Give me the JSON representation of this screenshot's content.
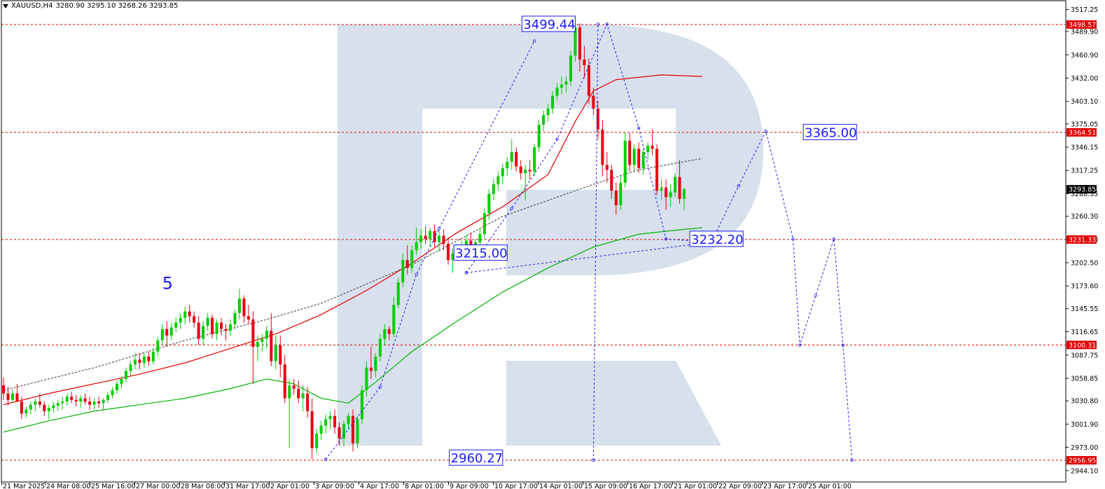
{
  "header": {
    "symbol": "XAUUSD,H4",
    "ohlc": "3280.90 3295.10 3268.26 3293.85"
  },
  "colors": {
    "bull": "#00cc00",
    "bear": "#e60012",
    "ma_red": "#e00000",
    "ma_green": "#00b400",
    "ma_dashed": "#555555",
    "level": "#e00000",
    "forecast": "#1a1aff",
    "watermark": "#d7e0ec"
  },
  "chart_data": {
    "type": "candlestick",
    "title": "XAUUSD,H4",
    "ylim": [
      2945,
      3530
    ],
    "yticks": [
      3517.25,
      3489.9,
      3460.9,
      3432.0,
      3403.1,
      3375.05,
      3346.15,
      3317.25,
      3288.35,
      3260.3,
      3231.4,
      3202.5,
      3173.6,
      3145.55,
      3116.65,
      3087.75,
      3058.85,
      3030.8,
      3001.9,
      2973.0,
      2944.1
    ],
    "xticks": [
      "21 Mar 2025",
      "24 Mar 08:00",
      "25 Mar 16:00",
      "27 Mar 00:00",
      "28 Mar 08:00",
      "31 Mar 17:00",
      "2 Apr 01:00",
      "3 Apr 09:00",
      "4 Apr 17:00",
      "8 Apr 01:00",
      "9 Apr 09:00",
      "10 Apr 17:00",
      "14 Apr 01:00",
      "15 Apr 09:00",
      "16 Apr 17:00",
      "21 Apr 01:00",
      "22 Apr 09:00",
      "23 Apr 17:00",
      "25 Apr 01:00"
    ],
    "price_tags": [
      {
        "value": 3498.57,
        "text": "3498.57",
        "color": "#e00000"
      },
      {
        "value": 3364.51,
        "text": "3364.51",
        "color": "#e00000"
      },
      {
        "value": 3293.85,
        "text": "3293.85",
        "color": "#000000"
      },
      {
        "value": 3231.33,
        "text": "3231.33",
        "color": "#e00000"
      },
      {
        "value": 3100.31,
        "text": "3100.31",
        "color": "#e00000"
      },
      {
        "value": 2956.95,
        "text": "2956.95",
        "color": "#e00000"
      }
    ],
    "levels": [
      3498.57,
      3364.51,
      3231.33,
      3100.31,
      2956.95
    ],
    "annotations": [
      {
        "text": "3499.44",
        "x": 126,
        "y": 3499.44
      },
      {
        "text": "3365.00",
        "x": 188,
        "y": 3365.0
      },
      {
        "text": "3215.00",
        "x": 111,
        "y": 3215.0
      },
      {
        "text": "3232.20",
        "x": 163,
        "y": 3232.2
      },
      {
        "text": "2960.27",
        "x": 110,
        "y": 2960.27
      }
    ],
    "wave_label": {
      "text": "5",
      "x": 35,
      "y": 3170
    },
    "candles": [
      [
        3050,
        3060,
        3032,
        3040
      ],
      [
        3040,
        3048,
        3025,
        3032
      ],
      [
        3032,
        3045,
        3028,
        3040
      ],
      [
        3040,
        3052,
        3035,
        3030
      ],
      [
        3030,
        3036,
        3008,
        3015
      ],
      [
        3015,
        3024,
        3010,
        3020
      ],
      [
        3020,
        3030,
        3014,
        3026
      ],
      [
        3026,
        3034,
        3018,
        3030
      ],
      [
        3030,
        3040,
        3022,
        3026
      ],
      [
        3026,
        3030,
        3012,
        3018
      ],
      [
        3018,
        3026,
        3008,
        3022
      ],
      [
        3022,
        3030,
        3016,
        3025
      ],
      [
        3025,
        3032,
        3018,
        3028
      ],
      [
        3028,
        3036,
        3020,
        3030
      ],
      [
        3030,
        3040,
        3025,
        3036
      ],
      [
        3036,
        3042,
        3028,
        3032
      ],
      [
        3032,
        3038,
        3024,
        3030
      ],
      [
        3030,
        3038,
        3022,
        3034
      ],
      [
        3034,
        3040,
        3026,
        3030
      ],
      [
        3030,
        3036,
        3020,
        3026
      ],
      [
        3026,
        3034,
        3020,
        3030
      ],
      [
        3030,
        3036,
        3022,
        3028
      ],
      [
        3028,
        3034,
        3020,
        3032
      ],
      [
        3032,
        3042,
        3028,
        3038
      ],
      [
        3038,
        3048,
        3034,
        3044
      ],
      [
        3044,
        3056,
        3040,
        3052
      ],
      [
        3052,
        3062,
        3046,
        3058
      ],
      [
        3058,
        3072,
        3054,
        3068
      ],
      [
        3068,
        3080,
        3062,
        3076
      ],
      [
        3076,
        3090,
        3070,
        3082
      ],
      [
        3082,
        3090,
        3070,
        3078
      ],
      [
        3078,
        3090,
        3072,
        3086
      ],
      [
        3086,
        3092,
        3074,
        3080
      ],
      [
        3080,
        3096,
        3076,
        3092
      ],
      [
        3092,
        3110,
        3086,
        3106
      ],
      [
        3106,
        3126,
        3100,
        3120
      ],
      [
        3120,
        3130,
        3098,
        3112
      ],
      [
        3112,
        3128,
        3106,
        3122
      ],
      [
        3122,
        3134,
        3116,
        3128
      ],
      [
        3128,
        3140,
        3120,
        3134
      ],
      [
        3134,
        3148,
        3126,
        3142
      ],
      [
        3142,
        3150,
        3128,
        3136
      ],
      [
        3136,
        3142,
        3122,
        3128
      ],
      [
        3128,
        3136,
        3100,
        3108
      ],
      [
        3108,
        3130,
        3100,
        3124
      ],
      [
        3124,
        3140,
        3118,
        3134
      ],
      [
        3134,
        3138,
        3108,
        3114
      ],
      [
        3114,
        3132,
        3106,
        3128
      ],
      [
        3128,
        3134,
        3112,
        3120
      ],
      [
        3120,
        3126,
        3106,
        3118
      ],
      [
        3118,
        3132,
        3112,
        3126
      ],
      [
        3126,
        3144,
        3120,
        3140
      ],
      [
        3140,
        3170,
        3132,
        3158
      ],
      [
        3158,
        3162,
        3128,
        3136
      ],
      [
        3136,
        3150,
        3126,
        3132
      ],
      [
        3132,
        3142,
        3052,
        3098
      ],
      [
        3098,
        3112,
        3080,
        3104
      ],
      [
        3104,
        3114,
        3092,
        3108
      ],
      [
        3108,
        3124,
        3096,
        3118
      ],
      [
        3118,
        3140,
        3074,
        3080
      ],
      [
        3080,
        3112,
        3070,
        3100
      ],
      [
        3100,
        3112,
        3060,
        3076
      ],
      [
        3076,
        3088,
        3028,
        3034
      ],
      [
        3034,
        3058,
        2972,
        3050
      ],
      [
        3050,
        3058,
        3038,
        3046
      ],
      [
        3046,
        3056,
        3028,
        3034
      ],
      [
        3034,
        3050,
        3018,
        3040
      ],
      [
        3040,
        3048,
        3010,
        3018
      ],
      [
        3018,
        3034,
        2958,
        2972
      ],
      [
        2972,
        2996,
        2966,
        2990
      ],
      [
        2990,
        3006,
        2982,
        3000
      ],
      [
        3000,
        3014,
        2990,
        3008
      ],
      [
        3008,
        3018,
        2996,
        3012
      ],
      [
        3012,
        3020,
        2990,
        2998
      ],
      [
        2998,
        3004,
        2975,
        2984
      ],
      [
        2984,
        3006,
        2974,
        3002
      ],
      [
        3002,
        3016,
        2996,
        3012
      ],
      [
        3012,
        3020,
        2968,
        2978
      ],
      [
        2978,
        3012,
        2972,
        3008
      ],
      [
        3008,
        3050,
        3002,
        3044
      ],
      [
        3044,
        3080,
        3036,
        3072
      ],
      [
        3072,
        3098,
        3058,
        3068
      ],
      [
        3068,
        3090,
        3060,
        3086
      ],
      [
        3086,
        3114,
        3080,
        3108
      ],
      [
        3108,
        3126,
        3100,
        3120
      ],
      [
        3120,
        3124,
        3106,
        3114
      ],
      [
        3114,
        3160,
        3110,
        3150
      ],
      [
        3150,
        3184,
        3146,
        3178
      ],
      [
        3178,
        3214,
        3172,
        3206
      ],
      [
        3206,
        3224,
        3188,
        3196
      ],
      [
        3196,
        3224,
        3190,
        3218
      ],
      [
        3218,
        3246,
        3212,
        3228
      ],
      [
        3228,
        3244,
        3220,
        3236
      ],
      [
        3236,
        3248,
        3226,
        3232
      ],
      [
        3232,
        3246,
        3222,
        3242
      ],
      [
        3242,
        3250,
        3222,
        3228
      ],
      [
        3228,
        3244,
        3216,
        3236
      ],
      [
        3236,
        3244,
        3218,
        3226
      ],
      [
        3226,
        3234,
        3200,
        3206
      ],
      [
        3206,
        3220,
        3190,
        3214
      ],
      [
        3214,
        3226,
        3206,
        3218
      ],
      [
        3218,
        3230,
        3208,
        3224
      ],
      [
        3224,
        3236,
        3214,
        3230
      ],
      [
        3230,
        3240,
        3210,
        3216
      ],
      [
        3216,
        3232,
        3208,
        3228
      ],
      [
        3228,
        3244,
        3222,
        3238
      ],
      [
        3238,
        3270,
        3232,
        3264
      ],
      [
        3264,
        3294,
        3256,
        3288
      ],
      [
        3288,
        3306,
        3280,
        3300
      ],
      [
        3300,
        3316,
        3292,
        3310
      ],
      [
        3310,
        3326,
        3300,
        3320
      ],
      [
        3320,
        3334,
        3310,
        3328
      ],
      [
        3328,
        3356,
        3318,
        3340
      ],
      [
        3340,
        3346,
        3316,
        3322
      ],
      [
        3322,
        3330,
        3306,
        3314
      ],
      [
        3314,
        3324,
        3280,
        3318
      ],
      [
        3318,
        3330,
        3306,
        3316
      ],
      [
        3316,
        3350,
        3310,
        3346
      ],
      [
        3346,
        3380,
        3340,
        3374
      ],
      [
        3374,
        3392,
        3366,
        3386
      ],
      [
        3386,
        3400,
        3378,
        3394
      ],
      [
        3394,
        3416,
        3388,
        3410
      ],
      [
        3410,
        3426,
        3404,
        3420
      ],
      [
        3420,
        3434,
        3412,
        3424
      ],
      [
        3424,
        3434,
        3414,
        3428
      ],
      [
        3428,
        3466,
        3422,
        3460
      ],
      [
        3460,
        3500,
        3452,
        3495
      ],
      [
        3495,
        3500,
        3440,
        3455
      ],
      [
        3455,
        3472,
        3432,
        3448
      ],
      [
        3448,
        3456,
        3400,
        3410
      ],
      [
        3410,
        3420,
        3386,
        3394
      ],
      [
        3394,
        3404,
        3356,
        3368
      ],
      [
        3368,
        3380,
        3310,
        3324
      ],
      [
        3324,
        3340,
        3302,
        3318
      ],
      [
        3318,
        3324,
        3282,
        3292
      ],
      [
        3292,
        3302,
        3262,
        3274
      ],
      [
        3274,
        3310,
        3268,
        3302
      ],
      [
        3302,
        3364,
        3296,
        3354
      ],
      [
        3354,
        3364,
        3316,
        3324
      ],
      [
        3324,
        3350,
        3316,
        3344
      ],
      [
        3344,
        3352,
        3314,
        3320
      ],
      [
        3320,
        3344,
        3312,
        3340
      ],
      [
        3340,
        3352,
        3330,
        3348
      ],
      [
        3348,
        3368,
        3336,
        3344
      ],
      [
        3344,
        3350,
        3286,
        3292
      ],
      [
        3292,
        3306,
        3280,
        3296
      ],
      [
        3296,
        3306,
        3268,
        3284
      ],
      [
        3284,
        3300,
        3272,
        3290
      ],
      [
        3290,
        3314,
        3284,
        3309
      ],
      [
        3309,
        3330,
        3276,
        3282
      ],
      [
        3282,
        3296,
        3268,
        3293.85
      ]
    ],
    "ma_red": [
      [
        0,
        3026
      ],
      [
        10,
        3040
      ],
      [
        20,
        3052
      ],
      [
        30,
        3064
      ],
      [
        40,
        3078
      ],
      [
        50,
        3096
      ],
      [
        60,
        3114
      ],
      [
        70,
        3138
      ],
      [
        80,
        3168
      ],
      [
        90,
        3202
      ],
      [
        100,
        3240
      ],
      [
        110,
        3272
      ],
      [
        120,
        3312
      ],
      [
        126,
        3378
      ],
      [
        130,
        3416
      ],
      [
        135,
        3430
      ],
      [
        145,
        3436
      ],
      [
        154,
        3434
      ]
    ],
    "ma_green": [
      [
        0,
        2992
      ],
      [
        10,
        3006
      ],
      [
        20,
        3018
      ],
      [
        30,
        3026
      ],
      [
        40,
        3034
      ],
      [
        50,
        3046
      ],
      [
        58,
        3058
      ],
      [
        64,
        3052
      ],
      [
        70,
        3034
      ],
      [
        76,
        3028
      ],
      [
        82,
        3054
      ],
      [
        90,
        3092
      ],
      [
        100,
        3130
      ],
      [
        110,
        3166
      ],
      [
        120,
        3196
      ],
      [
        130,
        3222
      ],
      [
        140,
        3238
      ],
      [
        150,
        3244
      ],
      [
        154,
        3246
      ]
    ],
    "ma_dashed": [
      [
        0,
        3044
      ],
      [
        20,
        3072
      ],
      [
        40,
        3106
      ],
      [
        58,
        3132
      ],
      [
        70,
        3152
      ],
      [
        90,
        3200
      ],
      [
        110,
        3260
      ],
      [
        130,
        3300
      ],
      [
        140,
        3318
      ],
      [
        154,
        3332
      ]
    ],
    "forecast_paths": [
      [
        [
          71,
          2958
        ],
        [
          83,
          3048
        ],
        [
          91,
          3188
        ],
        [
          96,
          3245
        ],
        [
          117,
          3478
        ]
      ],
      [
        [
          102,
          3190
        ],
        [
          112,
          3270
        ],
        [
          122,
          3356
        ],
        [
          133,
          3499
        ],
        [
          140,
          3370
        ],
        [
          146,
          3232
        ],
        [
          156,
          3228
        ],
        [
          162,
          3298
        ],
        [
          168,
          3366
        ],
        [
          174,
          3232
        ],
        [
          175.5,
          3100
        ],
        [
          179,
          3162
        ],
        [
          183,
          3232
        ],
        [
          185,
          3100
        ],
        [
          187,
          2957
        ]
      ],
      [
        [
          102,
          3190
        ],
        [
          156,
          3228
        ]
      ],
      [
        [
          130,
          2957
        ],
        [
          131,
          3499
        ]
      ]
    ]
  }
}
